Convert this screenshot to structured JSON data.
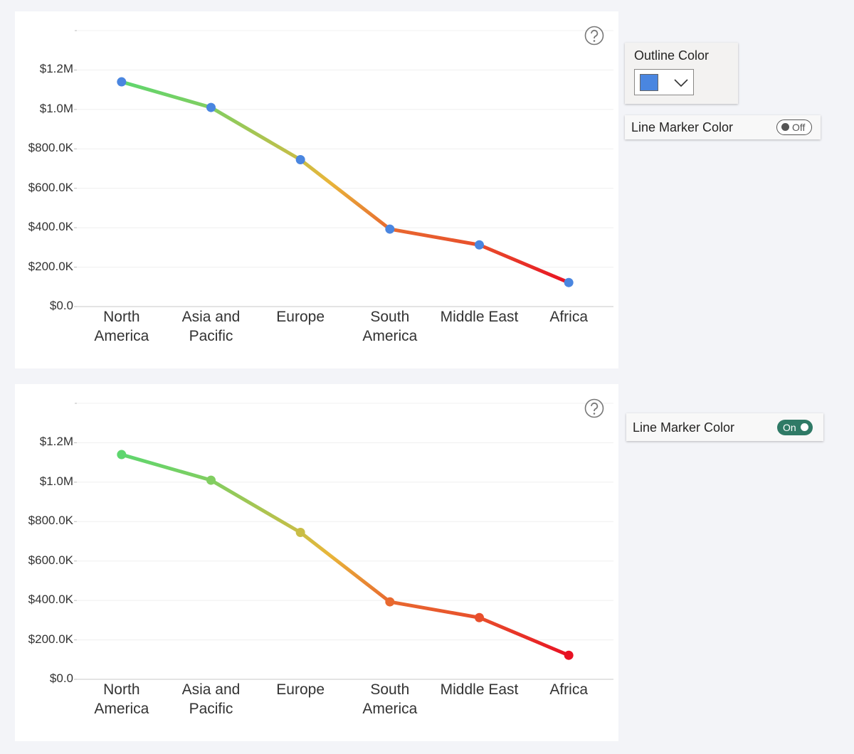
{
  "chart_data": [
    {
      "type": "line",
      "categories": [
        "North America",
        "Asia and Pacific",
        "Europe",
        "South America",
        "Middle East",
        "Africa"
      ],
      "values": [
        1140000,
        1010000,
        745000,
        393000,
        313000,
        122000
      ],
      "ylim": [
        0,
        1400000
      ],
      "yticks": [
        {
          "value": 0,
          "label": "$0.0"
        },
        {
          "value": 200000,
          "label": "$200.0K"
        },
        {
          "value": 400000,
          "label": "$400.0K"
        },
        {
          "value": 600000,
          "label": "$600.0K"
        },
        {
          "value": 800000,
          "label": "$800.0K"
        },
        {
          "value": 1000000,
          "label": "$1.0M"
        },
        {
          "value": 1200000,
          "label": "$1.2M"
        }
      ],
      "grid": true,
      "line_gradient": [
        "#e81123",
        "#e8b63a",
        "#5ed66e"
      ],
      "marker_color": "#4a86e0",
      "marker_color_by_value": false
    },
    {
      "type": "line",
      "categories": [
        "North America",
        "Asia and Pacific",
        "Europe",
        "South America",
        "Middle East",
        "Africa"
      ],
      "values": [
        1140000,
        1010000,
        745000,
        393000,
        313000,
        122000
      ],
      "ylim": [
        0,
        1400000
      ],
      "yticks": [
        {
          "value": 0,
          "label": "$0.0"
        },
        {
          "value": 200000,
          "label": "$200.0K"
        },
        {
          "value": 400000,
          "label": "$400.0K"
        },
        {
          "value": 600000,
          "label": "$600.0K"
        },
        {
          "value": 800000,
          "label": "$800.0K"
        },
        {
          "value": 1000000,
          "label": "$1.0M"
        },
        {
          "value": 1200000,
          "label": "$1.2M"
        }
      ],
      "grid": true,
      "line_gradient": [
        "#e81123",
        "#e8b63a",
        "#5ed66e"
      ],
      "marker_color_by_value": true
    }
  ],
  "panels": [
    {
      "outline_color": {
        "label": "Outline Color",
        "color": "#4a86e0"
      },
      "line_marker_color": {
        "label": "Line Marker Color",
        "toggle": "Off",
        "on": false
      }
    },
    {
      "line_marker_color": {
        "label": "Line Marker Color",
        "toggle": "On",
        "on": true
      }
    }
  ]
}
